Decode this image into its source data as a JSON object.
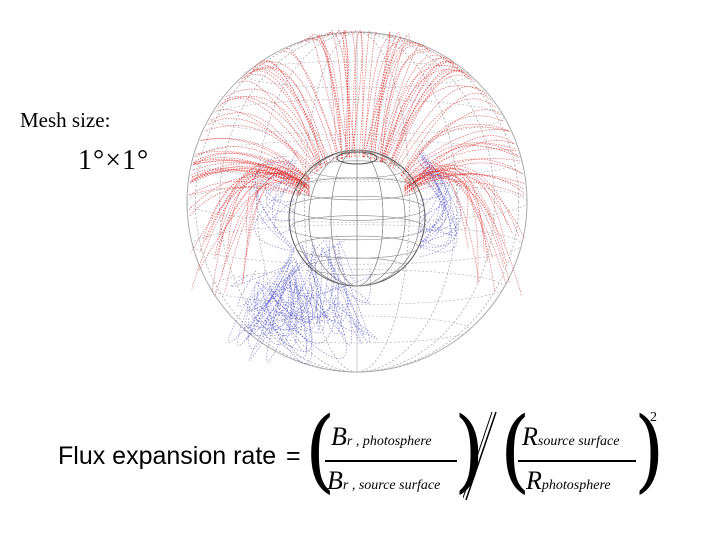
{
  "mesh": {
    "label": "Mesh size:",
    "value": "1°×1°"
  },
  "formula": {
    "lhs": "Flux expansion rate",
    "equals": "=",
    "num1_symbol": "B",
    "num1_sub": "r , photosphere",
    "den1_symbol": "B",
    "den1_sub": "r , source surface",
    "num2_symbol": "R",
    "num2_sub": "source surface",
    "den2_symbol": "R",
    "den2_sub": "photosphere",
    "exponent": "2"
  },
  "colors": {
    "open_field": "#e03030",
    "closed_field": "#5555cc",
    "mesh": "#aaaaaa"
  }
}
